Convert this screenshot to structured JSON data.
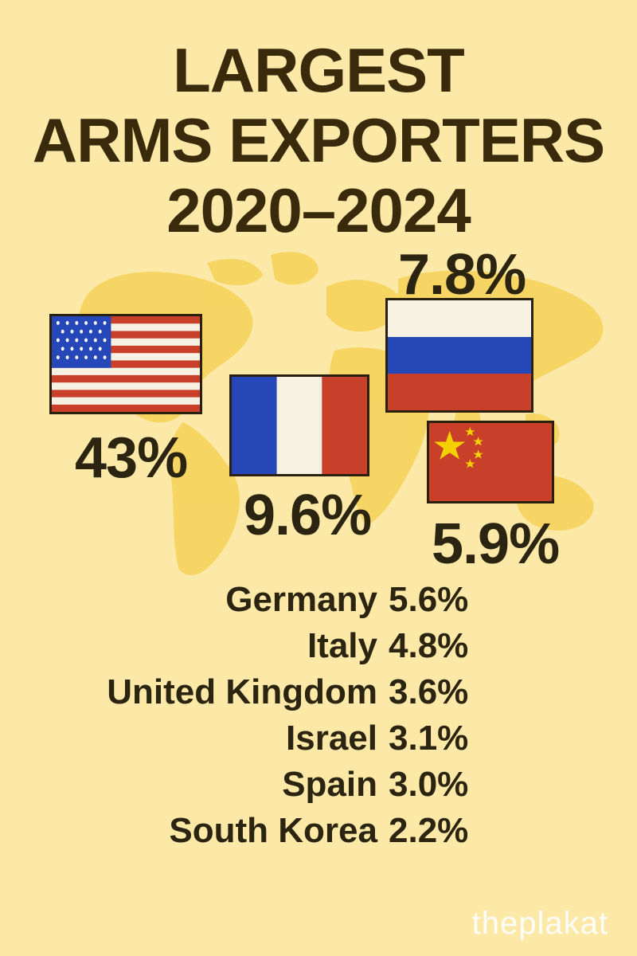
{
  "title": {
    "line1": "LARGEST",
    "line2": "ARMS EXPORTERS",
    "line3": "2020–2024"
  },
  "exporters_top": [
    {
      "country": "United States",
      "share": "43%",
      "flag": "us-flag-icon"
    },
    {
      "country": "France",
      "share": "9.6%",
      "flag": "france-flag-icon"
    },
    {
      "country": "Russia",
      "share": "7.8%",
      "flag": "russia-flag-icon"
    },
    {
      "country": "China",
      "share": "5.9%",
      "flag": "china-flag-icon"
    }
  ],
  "exporters_list": [
    {
      "name": "Germany",
      "value": "5.6%"
    },
    {
      "name": "Italy",
      "value": "4.8%"
    },
    {
      "name": "United Kingdom",
      "value": "3.6%"
    },
    {
      "name": "Israel",
      "value": "3.1%"
    },
    {
      "name": "Spain",
      "value": "3.0%"
    },
    {
      "name": "South Korea",
      "value": "2.2%"
    }
  ],
  "brand": "theplakat",
  "colors": {
    "background": "#fce9a8",
    "map": "#f5d25a",
    "text": "#2b2410",
    "flag_red": "#c8402a",
    "flag_blue": "#2547b8",
    "flag_white": "#f7f1e3"
  }
}
